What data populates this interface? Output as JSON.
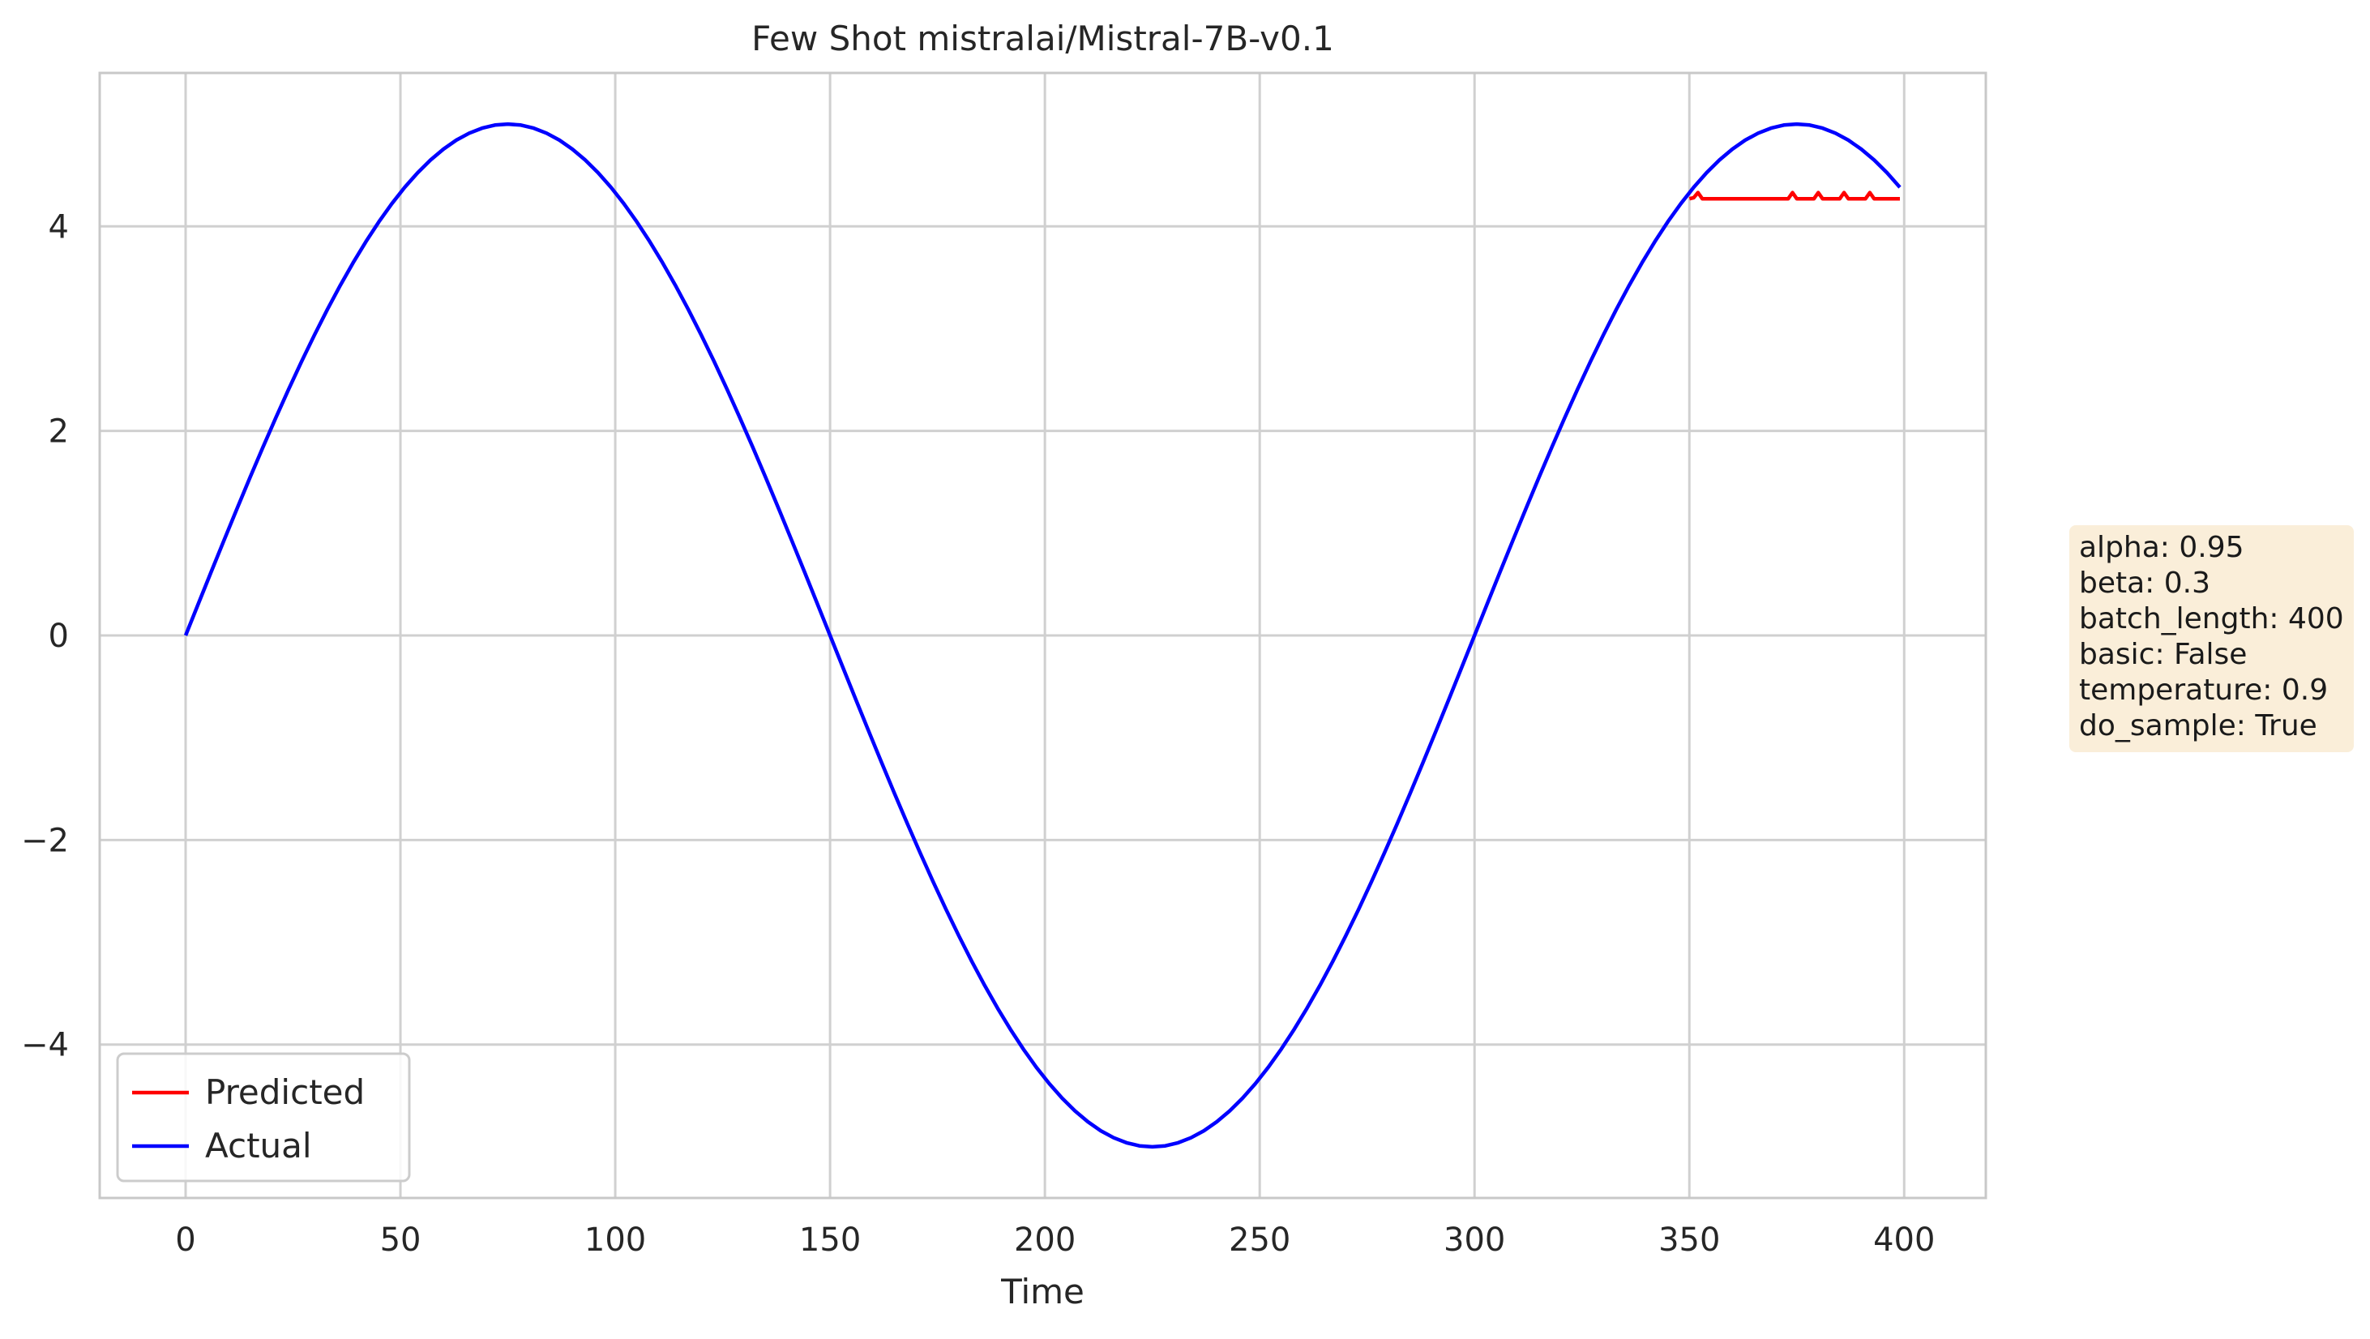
{
  "chart_data": {
    "type": "line",
    "title": "Few Shot mistralai/Mistral-7B-v0.1",
    "xlabel": "Time",
    "ylabel": "",
    "xlim": [
      -20,
      419
    ],
    "ylim": [
      -5.5,
      5.5
    ],
    "x_ticks": [
      0,
      50,
      100,
      150,
      200,
      250,
      300,
      350,
      400
    ],
    "y_ticks": [
      -4,
      -2,
      0,
      2,
      4
    ],
    "x_tick_labels": [
      "0",
      "50",
      "100",
      "150",
      "200",
      "250",
      "300",
      "350",
      "400"
    ],
    "y_tick_labels": [
      "−4",
      "−2",
      "0",
      "2",
      "4"
    ],
    "grid": true,
    "legend_position": "lower-left",
    "series": [
      {
        "name": "Predicted",
        "color": "#ff0000",
        "x": [
          350,
          351,
          352,
          353,
          354,
          356,
          358,
          360,
          362,
          364,
          366,
          368,
          370,
          372,
          373,
          374,
          375,
          376,
          378,
          379,
          380,
          381,
          382,
          384,
          385,
          386,
          387,
          388,
          390,
          391,
          392,
          393,
          394,
          396,
          398,
          399
        ],
        "values": [
          4.27,
          4.28,
          4.33,
          4.27,
          4.27,
          4.27,
          4.27,
          4.27,
          4.27,
          4.27,
          4.27,
          4.27,
          4.27,
          4.27,
          4.27,
          4.33,
          4.27,
          4.27,
          4.27,
          4.27,
          4.33,
          4.27,
          4.27,
          4.27,
          4.27,
          4.33,
          4.27,
          4.27,
          4.27,
          4.27,
          4.33,
          4.27,
          4.27,
          4.27,
          4.27,
          4.27
        ]
      },
      {
        "name": "Actual",
        "color": "#0000ff",
        "amplitude": 5,
        "period": 300,
        "x_start": 0,
        "x_end": 399,
        "x_step": 3
      }
    ]
  },
  "info_box": {
    "lines": [
      "alpha: 0.95",
      "beta: 0.3",
      "batch_length: 400",
      "basic: False",
      "temperature: 0.9",
      "do_sample: True"
    ]
  }
}
